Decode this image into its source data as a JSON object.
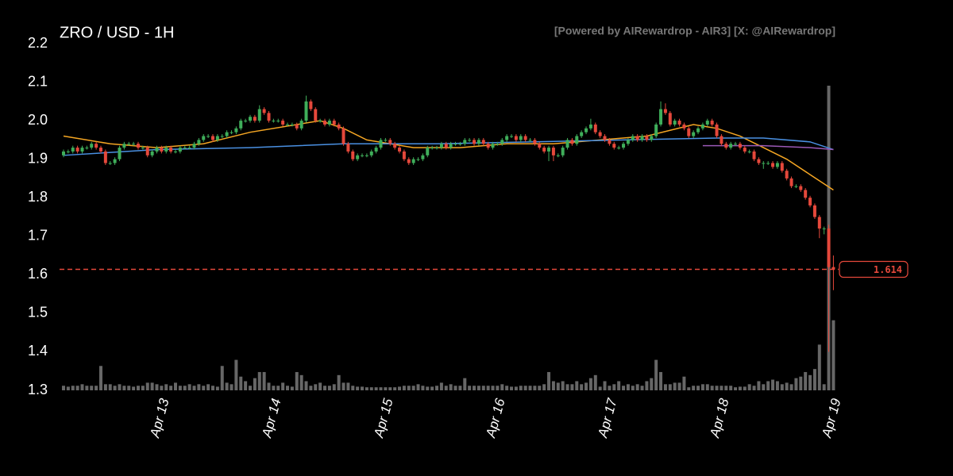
{
  "chart_data": {
    "type": "candlestick",
    "title": "ZRO / USD - 1H",
    "watermark": "[Powered by AIRewardrop - AIR3] [X: @AIRewardrop]",
    "ylim": [
      1.3,
      2.2
    ],
    "yticks": [
      1.3,
      1.4,
      1.5,
      1.6,
      1.7,
      1.8,
      1.9,
      {
        "value": 2,
        "label": "2.0"
      },
      2.1,
      2.2
    ],
    "xlim": [
      -1.7,
      166.8
    ],
    "xticks": [
      {
        "value": 21,
        "label": "Apr 13"
      },
      {
        "value": 45,
        "label": "Apr 14"
      },
      {
        "value": 69,
        "label": "Apr 15"
      },
      {
        "value": 93,
        "label": "Apr 16"
      },
      {
        "value": 117,
        "label": "Apr 17"
      },
      {
        "value": 141,
        "label": "Apr 18"
      },
      {
        "value": 165,
        "label": "Apr 19"
      }
    ],
    "up_color": "#3fae5a",
    "down_color": "#e5483b",
    "volume_color": "#8a8a8a",
    "current_price": 1.614,
    "current_price_color": "#e5483b",
    "ohlc": [
      [
        1.91,
        1.925,
        1.905,
        1.92
      ],
      [
        1.92,
        1.925,
        1.915,
        1.92
      ],
      [
        1.92,
        1.935,
        1.915,
        1.93
      ],
      [
        1.93,
        1.935,
        1.915,
        1.92
      ],
      [
        1.92,
        1.935,
        1.915,
        1.93
      ],
      [
        1.93,
        1.935,
        1.925,
        1.93
      ],
      [
        1.93,
        1.945,
        1.925,
        1.94
      ],
      [
        1.94,
        1.945,
        1.925,
        1.93
      ],
      [
        1.93,
        1.935,
        1.915,
        1.92
      ],
      [
        1.92,
        1.925,
        1.885,
        1.89
      ],
      [
        1.89,
        1.895,
        1.885,
        1.89
      ],
      [
        1.89,
        1.905,
        1.885,
        1.9
      ],
      [
        1.9,
        1.935,
        1.895,
        1.93
      ],
      [
        1.93,
        1.945,
        1.925,
        1.94
      ],
      [
        1.94,
        1.945,
        1.935,
        1.94
      ],
      [
        1.94,
        1.945,
        1.935,
        1.94
      ],
      [
        1.94,
        1.945,
        1.925,
        1.93
      ],
      [
        1.93,
        1.935,
        1.925,
        1.93
      ],
      [
        1.93,
        1.935,
        1.905,
        1.91
      ],
      [
        1.91,
        1.925,
        1.905,
        1.92
      ],
      [
        1.92,
        1.935,
        1.915,
        1.93
      ],
      [
        1.93,
        1.935,
        1.915,
        1.92
      ],
      [
        1.92,
        1.935,
        1.915,
        1.93
      ],
      [
        1.93,
        1.935,
        1.915,
        1.92
      ],
      [
        1.92,
        1.925,
        1.915,
        1.92
      ],
      [
        1.92,
        1.935,
        1.915,
        1.93
      ],
      [
        1.93,
        1.935,
        1.925,
        1.93
      ],
      [
        1.93,
        1.935,
        1.925,
        1.93
      ],
      [
        1.93,
        1.945,
        1.925,
        1.94
      ],
      [
        1.94,
        1.955,
        1.935,
        1.95
      ],
      [
        1.95,
        1.965,
        1.945,
        1.96
      ],
      [
        1.96,
        1.965,
        1.955,
        1.96
      ],
      [
        1.96,
        1.965,
        1.945,
        1.95
      ],
      [
        1.95,
        1.965,
        1.945,
        1.96
      ],
      [
        1.96,
        1.965,
        1.955,
        1.96
      ],
      [
        1.96,
        1.975,
        1.955,
        1.97
      ],
      [
        1.97,
        1.975,
        1.965,
        1.97
      ],
      [
        1.97,
        1.985,
        1.965,
        1.98
      ],
      [
        1.98,
        2.005,
        1.975,
        2.0
      ],
      [
        2.0,
        2.005,
        1.995,
        2.0
      ],
      [
        2.0,
        2.015,
        1.995,
        2.01
      ],
      [
        2.01,
        2.015,
        1.995,
        2.0
      ],
      [
        2.0,
        2.04,
        1.995,
        2.03
      ],
      [
        2.03,
        2.035,
        2.015,
        2.02
      ],
      [
        2.02,
        2.025,
        1.995,
        2.0
      ],
      [
        2.0,
        2.005,
        1.995,
        2.0
      ],
      [
        2.0,
        2.005,
        1.995,
        2.0
      ],
      [
        2.0,
        2.005,
        1.985,
        1.99
      ],
      [
        1.99,
        1.995,
        1.985,
        1.99
      ],
      [
        1.99,
        1.995,
        1.985,
        1.99
      ],
      [
        1.99,
        1.995,
        1.975,
        1.98
      ],
      [
        1.98,
        2.005,
        1.975,
        2.0
      ],
      [
        2.0,
        2.065,
        1.995,
        2.05
      ],
      [
        2.05,
        2.055,
        2.025,
        2.03
      ],
      [
        2.03,
        2.035,
        1.995,
        2.0
      ],
      [
        2.0,
        2.005,
        1.995,
        2.0
      ],
      [
        2.0,
        2.005,
        1.985,
        1.99
      ],
      [
        1.99,
        2.005,
        1.985,
        2.0
      ],
      [
        2.0,
        2.005,
        1.985,
        1.99
      ],
      [
        1.99,
        1.995,
        1.975,
        1.98
      ],
      [
        1.98,
        1.985,
        1.935,
        1.94
      ],
      [
        1.94,
        1.945,
        1.915,
        1.92
      ],
      [
        1.92,
        1.925,
        1.895,
        1.9
      ],
      [
        1.9,
        1.915,
        1.895,
        1.91
      ],
      [
        1.91,
        1.915,
        1.905,
        1.91
      ],
      [
        1.91,
        1.915,
        1.905,
        1.91
      ],
      [
        1.91,
        1.925,
        1.905,
        1.92
      ],
      [
        1.92,
        1.935,
        1.915,
        1.93
      ],
      [
        1.93,
        1.955,
        1.925,
        1.95
      ],
      [
        1.95,
        1.955,
        1.945,
        1.95
      ],
      [
        1.95,
        1.955,
        1.935,
        1.94
      ],
      [
        1.94,
        1.945,
        1.925,
        1.93
      ],
      [
        1.93,
        1.935,
        1.915,
        1.92
      ],
      [
        1.92,
        1.925,
        1.895,
        1.9
      ],
      [
        1.9,
        1.905,
        1.885,
        1.89
      ],
      [
        1.89,
        1.905,
        1.885,
        1.9
      ],
      [
        1.9,
        1.905,
        1.895,
        1.9
      ],
      [
        1.9,
        1.915,
        1.895,
        1.91
      ],
      [
        1.91,
        1.935,
        1.905,
        1.93
      ],
      [
        1.93,
        1.935,
        1.925,
        1.93
      ],
      [
        1.93,
        1.935,
        1.925,
        1.93
      ],
      [
        1.93,
        1.945,
        1.925,
        1.94
      ],
      [
        1.94,
        1.945,
        1.925,
        1.93
      ],
      [
        1.93,
        1.945,
        1.925,
        1.94
      ],
      [
        1.94,
        1.945,
        1.935,
        1.94
      ],
      [
        1.94,
        1.945,
        1.935,
        1.94
      ],
      [
        1.94,
        1.955,
        1.935,
        1.95
      ],
      [
        1.95,
        1.955,
        1.945,
        1.95
      ],
      [
        1.95,
        1.955,
        1.935,
        1.94
      ],
      [
        1.94,
        1.955,
        1.935,
        1.95
      ],
      [
        1.95,
        1.955,
        1.935,
        1.94
      ],
      [
        1.94,
        1.945,
        1.925,
        1.93
      ],
      [
        1.93,
        1.945,
        1.925,
        1.94
      ],
      [
        1.94,
        1.945,
        1.935,
        1.94
      ],
      [
        1.94,
        1.955,
        1.935,
        1.95
      ],
      [
        1.95,
        1.965,
        1.945,
        1.96
      ],
      [
        1.96,
        1.965,
        1.955,
        1.96
      ],
      [
        1.96,
        1.965,
        1.945,
        1.95
      ],
      [
        1.95,
        1.965,
        1.945,
        1.96
      ],
      [
        1.96,
        1.965,
        1.945,
        1.95
      ],
      [
        1.95,
        1.955,
        1.945,
        1.95
      ],
      [
        1.95,
        1.955,
        1.935,
        1.94
      ],
      [
        1.94,
        1.945,
        1.925,
        1.93
      ],
      [
        1.93,
        1.935,
        1.915,
        1.92
      ],
      [
        1.92,
        1.935,
        1.895,
        1.93
      ],
      [
        1.93,
        1.935,
        1.895,
        1.91
      ],
      [
        1.91,
        1.915,
        1.905,
        1.91
      ],
      [
        1.91,
        1.935,
        1.905,
        1.93
      ],
      [
        1.93,
        1.955,
        1.925,
        1.95
      ],
      [
        1.95,
        1.955,
        1.935,
        1.94
      ],
      [
        1.94,
        1.965,
        1.935,
        1.96
      ],
      [
        1.96,
        1.975,
        1.955,
        1.97
      ],
      [
        1.97,
        1.985,
        1.965,
        1.98
      ],
      [
        1.98,
        2.005,
        1.975,
        1.99
      ],
      [
        1.99,
        1.995,
        1.965,
        1.97
      ],
      [
        1.97,
        1.975,
        1.955,
        1.96
      ],
      [
        1.96,
        1.965,
        1.945,
        1.95
      ],
      [
        1.95,
        1.955,
        1.935,
        1.94
      ],
      [
        1.94,
        1.945,
        1.925,
        1.93
      ],
      [
        1.93,
        1.935,
        1.925,
        1.93
      ],
      [
        1.93,
        1.945,
        1.925,
        1.94
      ],
      [
        1.94,
        1.955,
        1.935,
        1.95
      ],
      [
        1.95,
        1.965,
        1.945,
        1.96
      ],
      [
        1.96,
        1.965,
        1.945,
        1.95
      ],
      [
        1.95,
        1.965,
        1.945,
        1.96
      ],
      [
        1.96,
        1.965,
        1.945,
        1.95
      ],
      [
        1.95,
        1.965,
        1.945,
        1.96
      ],
      [
        1.96,
        1.995,
        1.955,
        1.99
      ],
      [
        1.99,
        2.05,
        1.985,
        2.03
      ],
      [
        2.03,
        2.045,
        2.015,
        2.02
      ],
      [
        2.02,
        2.025,
        1.985,
        1.99
      ],
      [
        1.99,
        2.005,
        1.985,
        2.0
      ],
      [
        2.0,
        2.005,
        1.985,
        1.99
      ],
      [
        1.99,
        1.995,
        1.975,
        1.98
      ],
      [
        1.98,
        1.985,
        1.955,
        1.96
      ],
      [
        1.96,
        1.975,
        1.955,
        1.97
      ],
      [
        1.97,
        1.985,
        1.965,
        1.98
      ],
      [
        1.98,
        1.995,
        1.975,
        1.99
      ],
      [
        1.99,
        2.005,
        1.985,
        2.0
      ],
      [
        2.0,
        2.005,
        1.985,
        1.99
      ],
      [
        1.99,
        1.995,
        1.955,
        1.96
      ],
      [
        1.96,
        1.965,
        1.935,
        1.94
      ],
      [
        1.94,
        1.945,
        1.925,
        1.93
      ],
      [
        1.93,
        1.945,
        1.925,
        1.94
      ],
      [
        1.94,
        1.945,
        1.935,
        1.94
      ],
      [
        1.94,
        1.945,
        1.925,
        1.93
      ],
      [
        1.93,
        1.935,
        1.915,
        1.92
      ],
      [
        1.92,
        1.925,
        1.915,
        1.92
      ],
      [
        1.92,
        1.925,
        1.895,
        1.9
      ],
      [
        1.9,
        1.905,
        1.885,
        1.89
      ],
      [
        1.89,
        1.895,
        1.875,
        1.89
      ],
      [
        1.89,
        1.895,
        1.885,
        1.89
      ],
      [
        1.89,
        1.895,
        1.875,
        1.88
      ],
      [
        1.88,
        1.895,
        1.875,
        1.89
      ],
      [
        1.89,
        1.895,
        1.865,
        1.87
      ],
      [
        1.87,
        1.875,
        1.845,
        1.85
      ],
      [
        1.85,
        1.855,
        1.825,
        1.83
      ],
      [
        1.83,
        1.835,
        1.825,
        1.83
      ],
      [
        1.83,
        1.835,
        1.815,
        1.82
      ],
      [
        1.82,
        1.825,
        1.795,
        1.8
      ],
      [
        1.8,
        1.805,
        1.775,
        1.78
      ],
      [
        1.78,
        1.785,
        1.745,
        1.75
      ],
      [
        1.75,
        1.755,
        1.695,
        1.72
      ],
      [
        1.72,
        1.725,
        1.705,
        1.72
      ],
      [
        1.72,
        1.73,
        1.4,
        1.62
      ],
      [
        1.62,
        1.65,
        1.56,
        1.614
      ]
    ],
    "volumes": [
      1.5,
      1.2,
      1.5,
      1.5,
      2,
      1.5,
      1.5,
      1.5,
      8,
      2,
      2,
      1.5,
      2,
      1.5,
      1.5,
      1.2,
      1.5,
      1.5,
      2.5,
      2.5,
      2,
      1.5,
      2,
      1.5,
      2.5,
      1.5,
      1.5,
      2,
      1.5,
      2,
      1.5,
      2,
      1.5,
      1.2,
      8,
      2.5,
      2,
      10,
      4.5,
      3,
      1.5,
      4,
      6,
      6,
      2.5,
      1.5,
      1.5,
      2.5,
      1.5,
      1.2,
      6,
      5,
      3,
      1.5,
      2,
      2.5,
      1.5,
      1.5,
      2,
      5,
      2.5,
      2.5,
      1.5,
      1.2,
      1.2,
      1,
      1,
      1,
      1,
      1,
      1,
      1,
      1.2,
      1.5,
      1.5,
      1.5,
      2,
      1.5,
      1.2,
      1.2,
      1.5,
      2.5,
      1.5,
      2,
      1.5,
      1.5,
      4,
      1.5,
      1.5,
      1.5,
      1.5,
      1.5,
      1.5,
      1.5,
      2,
      1.5,
      1.2,
      1.2,
      1.5,
      1.5,
      1.5,
      1.5,
      1.5,
      2,
      6,
      3,
      2.5,
      3,
      2,
      2,
      3,
      2,
      2.5,
      4,
      5,
      1.2,
      3,
      1.5,
      2,
      3,
      1.5,
      2,
      1.5,
      2,
      1.5,
      3,
      4,
      10,
      6,
      2,
      2,
      2.5,
      2.5,
      4.5,
      1,
      1.5,
      1.5,
      2,
      2,
      1.5,
      1.5,
      1.5,
      1.5,
      1.5,
      1,
      1.2,
      1.2,
      2,
      1.5,
      3,
      2,
      3,
      3.5,
      3,
      2,
      2.5,
      2,
      4,
      4.5,
      6,
      5,
      7,
      15,
      2,
      100,
      23
    ],
    "series": [
      {
        "color": "#f5a623",
        "x": [
          0,
          10,
          20,
          30,
          40,
          50,
          55,
          60,
          65,
          75,
          85,
          95,
          105,
          115,
          125,
          135,
          140,
          145,
          150,
          155,
          160,
          165
        ],
        "values": [
          1.96,
          1.94,
          1.93,
          1.94,
          1.97,
          1.99,
          2.0,
          1.98,
          1.95,
          1.93,
          1.93,
          1.94,
          1.94,
          1.95,
          1.96,
          1.99,
          1.98,
          1.96,
          1.93,
          1.9,
          1.86,
          1.82
        ]
      },
      {
        "color": "#4a90e2",
        "x": [
          0,
          20,
          40,
          60,
          80,
          100,
          120,
          140,
          150,
          160,
          165
        ],
        "values": [
          1.91,
          1.925,
          1.93,
          1.94,
          1.94,
          1.945,
          1.95,
          1.955,
          1.955,
          1.945,
          1.925
        ]
      },
      {
        "color": "#9b59b6",
        "x": [
          137,
          150,
          160,
          165
        ],
        "values": [
          1.935,
          1.935,
          1.93,
          1.925
        ]
      }
    ]
  }
}
